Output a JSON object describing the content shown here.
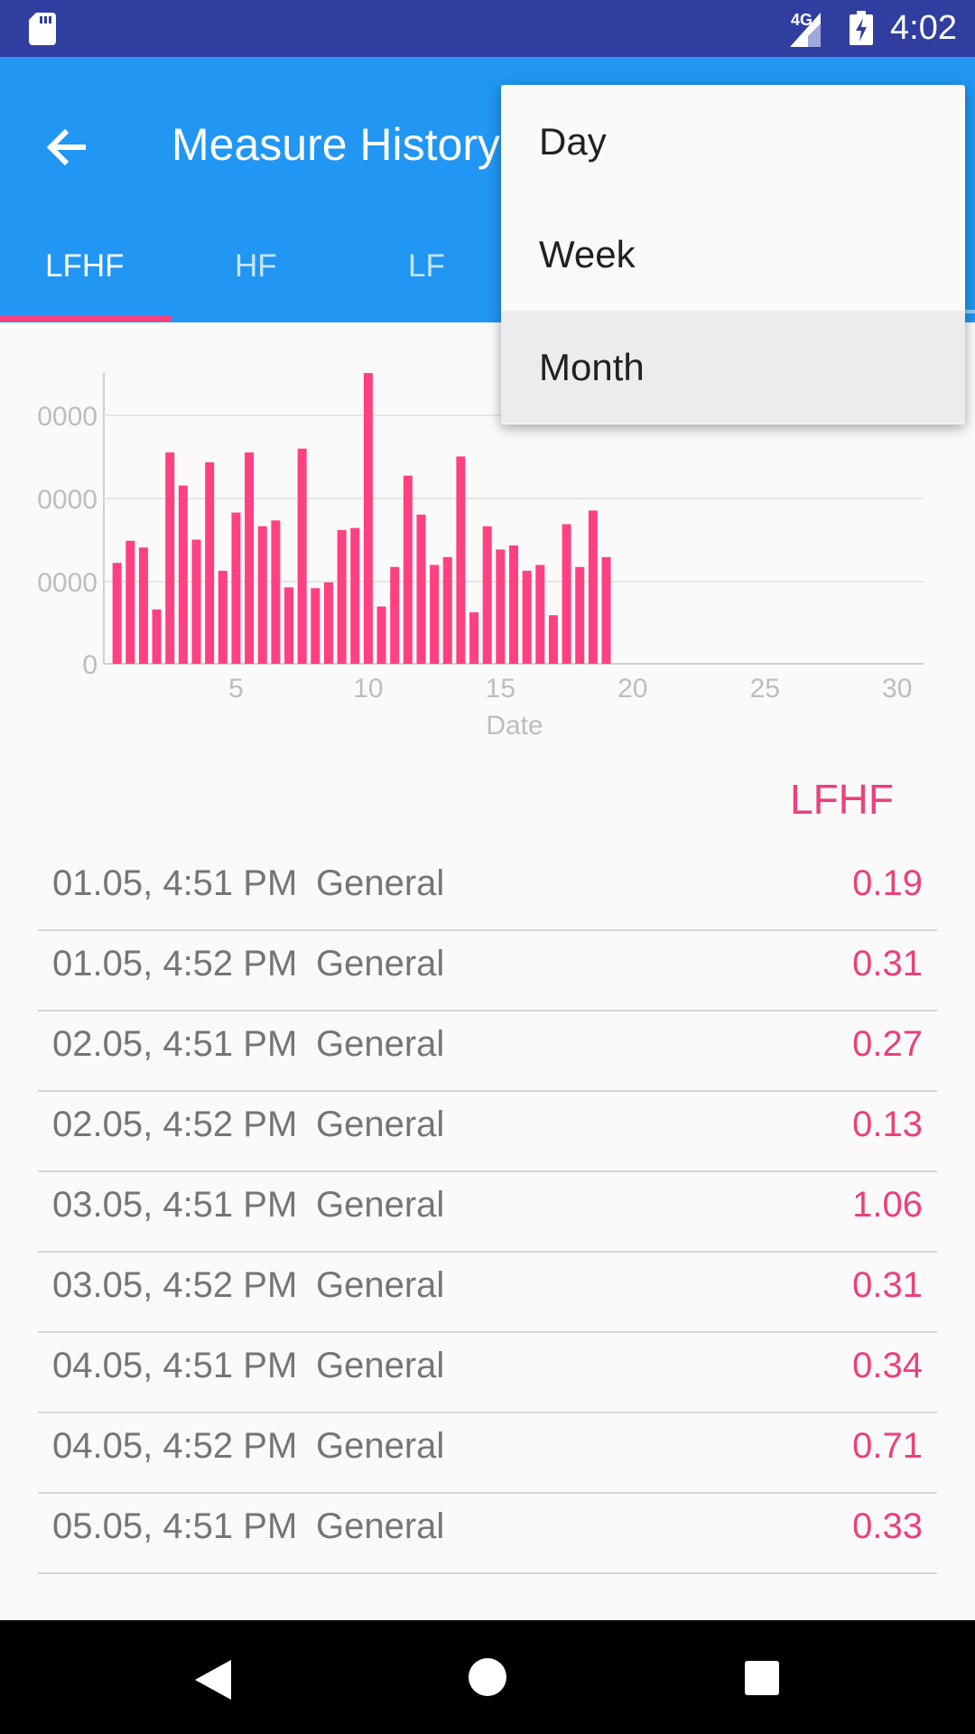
{
  "status_bar": {
    "time": "4:02",
    "network_label": "4G",
    "icons": [
      "sd-card-icon",
      "signal-icon",
      "battery-charging-icon"
    ]
  },
  "app_bar": {
    "title": "Measure History",
    "back_icon": "arrow-back-icon"
  },
  "tabs": [
    {
      "label": "LFHF",
      "active": true
    },
    {
      "label": "HF",
      "active": false
    },
    {
      "label": "LF",
      "active": false
    }
  ],
  "menu": {
    "items": [
      {
        "label": "Day",
        "selected": false
      },
      {
        "label": "Week",
        "selected": false
      },
      {
        "label": "Month",
        "selected": true
      }
    ]
  },
  "chart_data": {
    "type": "bar",
    "x_label": "Date",
    "x_ticks": [
      "5",
      "10",
      "15",
      "20",
      "25",
      "30"
    ],
    "xlim": [
      0,
      31
    ],
    "y_ticks": [
      "0",
      "0000",
      "0000",
      "0000"
    ],
    "color": "#ff4081",
    "grid": true,
    "series": [
      {
        "values": [
          [
            0.5,
            0.347
          ],
          [
            1.0,
            0.423
          ],
          [
            1.5,
            0.4
          ],
          [
            2.0,
            0.187
          ],
          [
            2.5,
            0.727
          ],
          [
            3.0,
            0.613
          ],
          [
            3.5,
            0.427
          ],
          [
            4.0,
            0.693
          ],
          [
            4.5,
            0.32
          ],
          [
            5.0,
            0.52
          ],
          [
            5.5,
            0.727
          ],
          [
            6.0,
            0.473
          ],
          [
            6.5,
            0.493
          ],
          [
            7.0,
            0.263
          ],
          [
            7.5,
            0.74
          ],
          [
            8.0,
            0.26
          ],
          [
            8.5,
            0.28
          ],
          [
            9.0,
            0.46
          ],
          [
            9.5,
            0.467
          ],
          [
            10.0,
            1.0
          ],
          [
            10.5,
            0.197
          ],
          [
            11.0,
            0.333
          ],
          [
            11.5,
            0.647
          ],
          [
            12.0,
            0.513
          ],
          [
            12.5,
            0.34
          ],
          [
            13.0,
            0.367
          ],
          [
            13.5,
            0.713
          ],
          [
            14.0,
            0.177
          ],
          [
            14.5,
            0.473
          ],
          [
            15.0,
            0.393
          ],
          [
            15.5,
            0.407
          ],
          [
            16.0,
            0.32
          ],
          [
            16.5,
            0.34
          ],
          [
            17.0,
            0.167
          ],
          [
            17.5,
            0.48
          ],
          [
            18.0,
            0.333
          ],
          [
            18.5,
            0.527
          ],
          [
            19.0,
            0.367
          ]
        ]
      }
    ]
  },
  "legend_label": "LFHF",
  "rows": [
    {
      "date": "01.05, 4:51 PM",
      "type": "General",
      "value": "0.19"
    },
    {
      "date": "01.05, 4:52 PM",
      "type": "General",
      "value": "0.31"
    },
    {
      "date": "02.05, 4:51 PM",
      "type": "General",
      "value": "0.27"
    },
    {
      "date": "02.05, 4:52 PM",
      "type": "General",
      "value": "0.13"
    },
    {
      "date": "03.05, 4:51 PM",
      "type": "General",
      "value": "1.06"
    },
    {
      "date": "03.05, 4:52 PM",
      "type": "General",
      "value": "0.31"
    },
    {
      "date": "04.05, 4:51 PM",
      "type": "General",
      "value": "0.34"
    },
    {
      "date": "04.05, 4:52 PM",
      "type": "General",
      "value": "0.71"
    },
    {
      "date": "05.05, 4:51 PM",
      "type": "General",
      "value": "0.33"
    }
  ],
  "nav_bar": {
    "icons": [
      "nav-back-icon",
      "nav-home-icon",
      "nav-recents-icon"
    ]
  }
}
